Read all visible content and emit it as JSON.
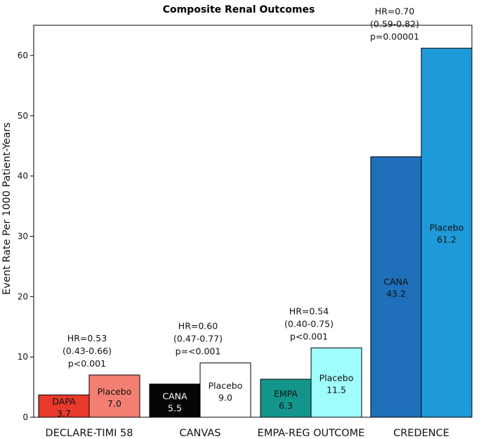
{
  "chart_data": {
    "type": "bar",
    "title": "Composite Renal Outcomes",
    "xlabel": "",
    "ylabel": "Event Rate Per 1000 Patient-Years",
    "ylim": [
      0,
      65
    ],
    "yticks": [
      0,
      10,
      20,
      30,
      40,
      50,
      60
    ],
    "grid": false,
    "categories": [
      "DECLARE-TIMI 58",
      "CANVAS",
      "EMPA-REG OUTCOME",
      "CREDENCE"
    ],
    "groups": [
      {
        "category": "DECLARE-TIMI 58",
        "bars": [
          {
            "label": "DAPA",
            "value": 3.7,
            "value_text": "3.7",
            "color": "#e8392b",
            "text_color": "#111111"
          },
          {
            "label": "Placebo",
            "value": 7.0,
            "value_text": "7.0",
            "color": "#f27f72",
            "text_color": "#111111"
          }
        ],
        "annotation": [
          "HR=0.53",
          "(0.43-0.66)",
          "p<0.001"
        ]
      },
      {
        "category": "CANVAS",
        "bars": [
          {
            "label": "CANA",
            "value": 5.5,
            "value_text": "5.5",
            "color": "#050505",
            "text_color": "#ffffff"
          },
          {
            "label": "Placebo",
            "value": 9.0,
            "value_text": "9.0",
            "color": "#ffffff",
            "text_color": "#111111"
          }
        ],
        "annotation": [
          "HR=0.60",
          "(0.47-0.77)",
          "p=<0.001"
        ]
      },
      {
        "category": "EMPA-REG OUTCOME",
        "bars": [
          {
            "label": "EMPA",
            "value": 6.3,
            "value_text": "6.3",
            "color": "#13958c",
            "text_color": "#111111"
          },
          {
            "label": "Placebo",
            "value": 11.5,
            "value_text": "11.5",
            "color": "#9ffdfb",
            "text_color": "#111111"
          }
        ],
        "annotation": [
          "HR=0.54",
          "(0.40-0.75)",
          "p<0.001"
        ]
      },
      {
        "category": "CREDENCE",
        "bars": [
          {
            "label": "CANA",
            "value": 43.2,
            "value_text": "43.2",
            "color": "#1f6fbb",
            "text_color": "#111111"
          },
          {
            "label": "Placebo",
            "value": 61.2,
            "value_text": "61.2",
            "color": "#1f9ad9",
            "text_color": "#111111"
          }
        ],
        "annotation": [
          "HR=0.70",
          "(0.59-0.82)",
          "p=0.00001"
        ]
      }
    ]
  }
}
